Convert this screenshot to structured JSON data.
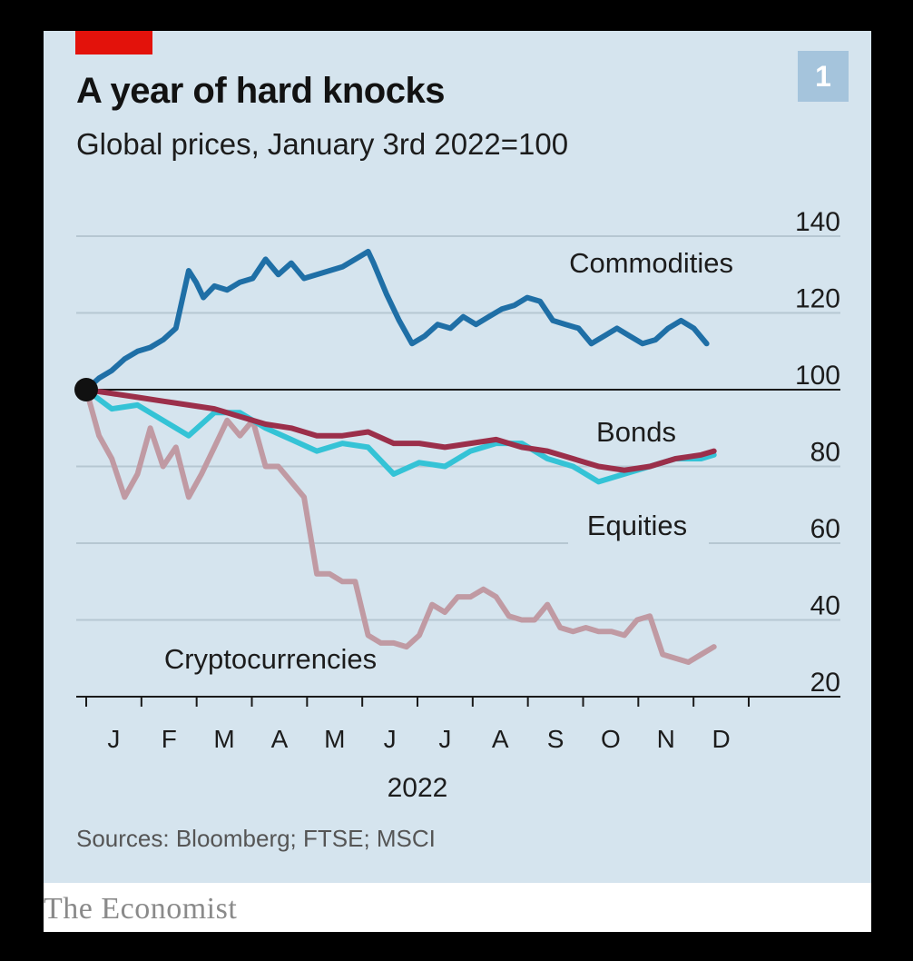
{
  "header": {
    "title": "A year of hard knocks",
    "subtitle": "Global prices, January 3rd 2022=100",
    "badge": "1"
  },
  "footer": {
    "source": "Sources: Bloomberg; FTSE; MSCI",
    "brand": "The Economist"
  },
  "colors": {
    "commodities": "#1f6fa6",
    "equities": "#34c3d6",
    "bonds": "#9b2f4a",
    "cryptocurrencies": "#c09aa3",
    "accent": "#e3120b",
    "grid": "#b6c7d2",
    "baseline": "#1a1a1a"
  },
  "chart_data": {
    "type": "line",
    "title": "A year of hard knocks",
    "subtitle": "Global prices, January 3rd 2022=100",
    "xlabel": "2022",
    "ylabel": "",
    "x_ticks": [
      "J",
      "F",
      "M",
      "A",
      "M",
      "J",
      "J",
      "A",
      "S",
      "O",
      "N",
      "D"
    ],
    "y_ticks": [
      140,
      120,
      100,
      80,
      60,
      40,
      20
    ],
    "ylim": [
      20,
      140
    ],
    "xlim": [
      "2022-01-03",
      "2022-12-31"
    ],
    "grid": true,
    "baseline": 100,
    "series": [
      {
        "name": "Commodities",
        "x": [
          "2022-01-03",
          "2022-01-10",
          "2022-01-17",
          "2022-01-24",
          "2022-01-31",
          "2022-02-07",
          "2022-02-14",
          "2022-02-21",
          "2022-02-28",
          "2022-03-04",
          "2022-03-08",
          "2022-03-14",
          "2022-03-21",
          "2022-03-28",
          "2022-04-04",
          "2022-04-11",
          "2022-04-18",
          "2022-04-25",
          "2022-05-02",
          "2022-05-09",
          "2022-05-16",
          "2022-05-23",
          "2022-05-30",
          "2022-06-06",
          "2022-06-09",
          "2022-06-16",
          "2022-06-23",
          "2022-06-30",
          "2022-07-07",
          "2022-07-14",
          "2022-07-21",
          "2022-07-28",
          "2022-08-04",
          "2022-08-11",
          "2022-08-18",
          "2022-08-25",
          "2022-09-01",
          "2022-09-08",
          "2022-09-15",
          "2022-09-22",
          "2022-09-29",
          "2022-10-06",
          "2022-10-13",
          "2022-10-20",
          "2022-10-27",
          "2022-11-03",
          "2022-11-10",
          "2022-11-17",
          "2022-11-24",
          "2022-12-01",
          "2022-12-08"
        ],
        "values": [
          100,
          103,
          105,
          108,
          110,
          111,
          113,
          116,
          131,
          128,
          124,
          127,
          126,
          128,
          129,
          134,
          130,
          133,
          129,
          130,
          131,
          132,
          134,
          136,
          133,
          125,
          118,
          112,
          114,
          117,
          116,
          119,
          117,
          119,
          121,
          122,
          124,
          123,
          118,
          117,
          116,
          112,
          114,
          116,
          114,
          112,
          113,
          116,
          118,
          116,
          112
        ]
      },
      {
        "name": "Bonds",
        "x": [
          "2022-01-03",
          "2022-01-17",
          "2022-01-31",
          "2022-02-14",
          "2022-02-28",
          "2022-03-14",
          "2022-03-28",
          "2022-04-11",
          "2022-04-25",
          "2022-05-09",
          "2022-05-23",
          "2022-06-06",
          "2022-06-20",
          "2022-07-04",
          "2022-07-18",
          "2022-08-01",
          "2022-08-15",
          "2022-08-29",
          "2022-09-12",
          "2022-09-26",
          "2022-10-10",
          "2022-10-24",
          "2022-11-07",
          "2022-11-21",
          "2022-12-05",
          "2022-12-12"
        ],
        "values": [
          100,
          99,
          98,
          97,
          96,
          95,
          93,
          91,
          90,
          88,
          88,
          89,
          86,
          86,
          85,
          86,
          87,
          85,
          84,
          82,
          80,
          79,
          80,
          82,
          83,
          84
        ]
      },
      {
        "name": "Equities",
        "x": [
          "2022-01-03",
          "2022-01-17",
          "2022-01-31",
          "2022-02-14",
          "2022-02-28",
          "2022-03-14",
          "2022-03-28",
          "2022-04-11",
          "2022-04-25",
          "2022-05-09",
          "2022-05-23",
          "2022-06-06",
          "2022-06-20",
          "2022-07-04",
          "2022-07-18",
          "2022-08-01",
          "2022-08-15",
          "2022-08-29",
          "2022-09-12",
          "2022-09-26",
          "2022-10-10",
          "2022-10-24",
          "2022-11-07",
          "2022-11-21",
          "2022-12-05",
          "2022-12-12"
        ],
        "values": [
          100,
          95,
          96,
          92,
          88,
          94,
          94,
          90,
          87,
          84,
          86,
          85,
          78,
          81,
          80,
          84,
          86,
          86,
          82,
          80,
          76,
          78,
          80,
          82,
          82,
          83
        ]
      },
      {
        "name": "Cryptocurrencies",
        "x": [
          "2022-01-03",
          "2022-01-10",
          "2022-01-17",
          "2022-01-24",
          "2022-01-31",
          "2022-02-07",
          "2022-02-14",
          "2022-02-21",
          "2022-02-28",
          "2022-03-07",
          "2022-03-14",
          "2022-03-21",
          "2022-03-28",
          "2022-04-04",
          "2022-04-11",
          "2022-04-18",
          "2022-04-25",
          "2022-05-02",
          "2022-05-09",
          "2022-05-16",
          "2022-05-23",
          "2022-05-30",
          "2022-06-06",
          "2022-06-13",
          "2022-06-20",
          "2022-06-27",
          "2022-07-04",
          "2022-07-11",
          "2022-07-18",
          "2022-07-25",
          "2022-08-01",
          "2022-08-08",
          "2022-08-15",
          "2022-08-22",
          "2022-08-29",
          "2022-09-05",
          "2022-09-12",
          "2022-09-19",
          "2022-09-26",
          "2022-10-03",
          "2022-10-10",
          "2022-10-17",
          "2022-10-24",
          "2022-10-31",
          "2022-11-07",
          "2022-11-14",
          "2022-11-21",
          "2022-11-28",
          "2022-12-05",
          "2022-12-12"
        ],
        "values": [
          100,
          88,
          82,
          72,
          78,
          90,
          80,
          85,
          72,
          78,
          85,
          92,
          88,
          92,
          80,
          80,
          76,
          72,
          52,
          52,
          50,
          50,
          36,
          34,
          34,
          33,
          36,
          44,
          42,
          46,
          46,
          48,
          46,
          41,
          40,
          40,
          44,
          38,
          37,
          38,
          37,
          37,
          36,
          40,
          41,
          31,
          30,
          29,
          31,
          33
        ]
      }
    ],
    "annotations": [
      "Commodities",
      "Bonds",
      "Equities",
      "Cryptocurrencies"
    ]
  }
}
